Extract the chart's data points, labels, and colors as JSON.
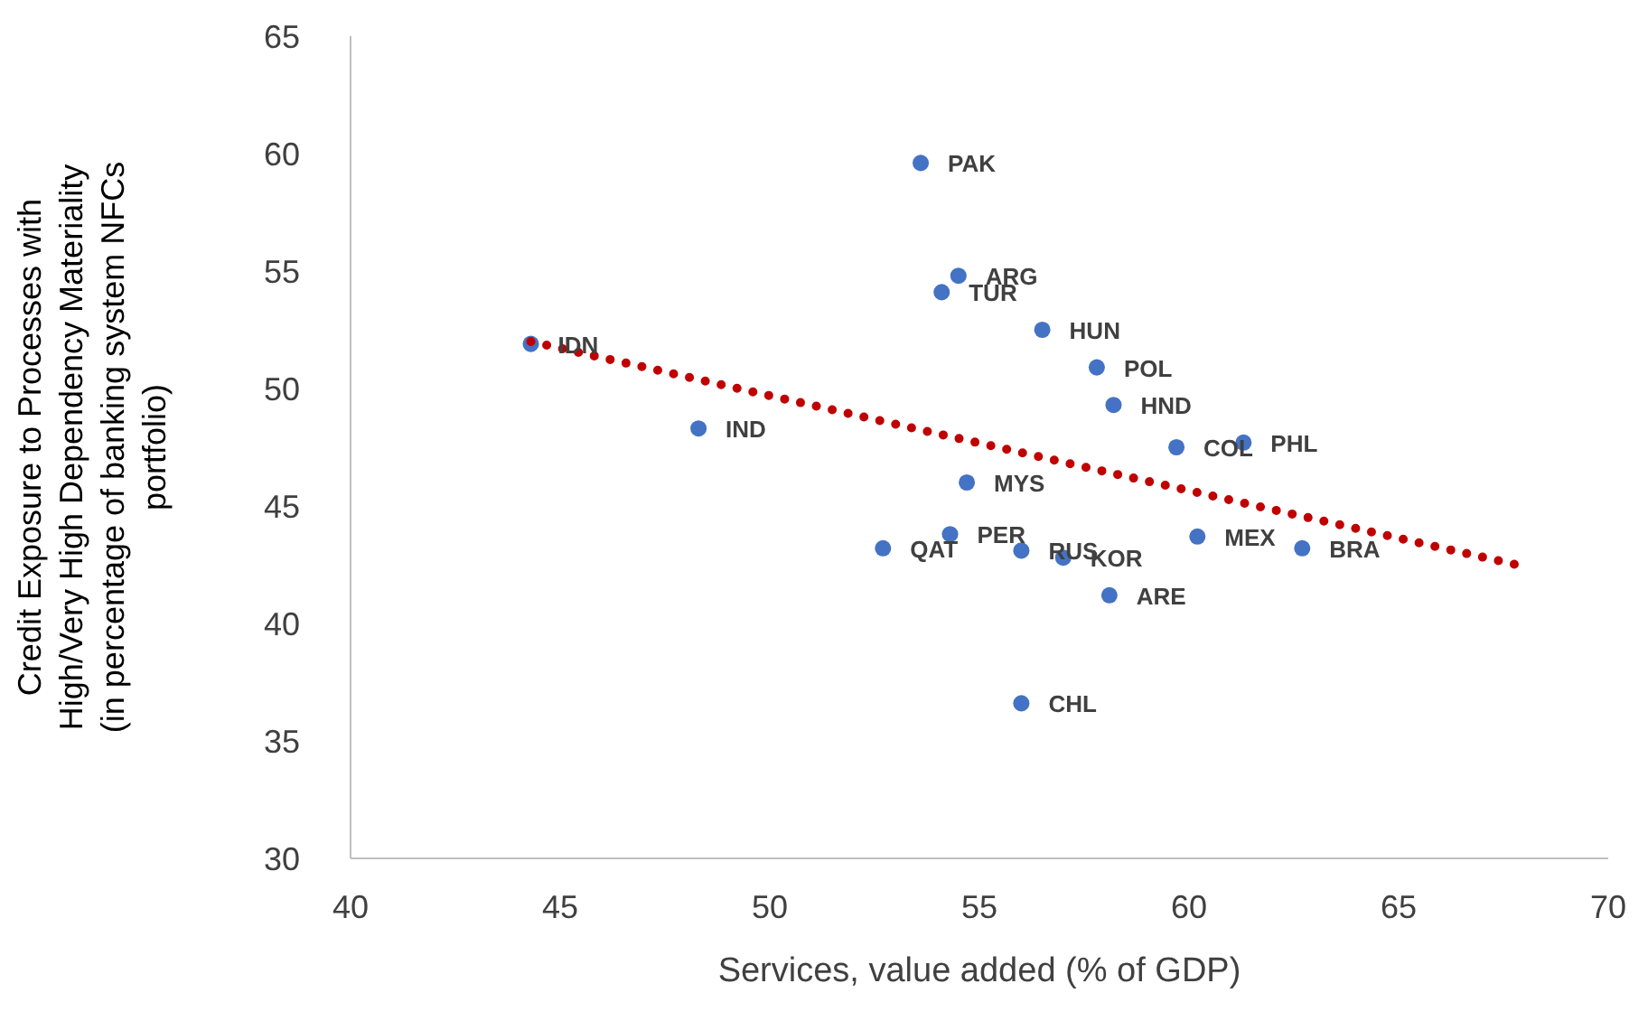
{
  "chart_data": {
    "type": "scatter",
    "xlabel": "Services, value added (% of GDP)",
    "ylabel": "Credit Exposure to Processes with\nHigh/Very High Dependency Materiality\n(in percentage of banking system NFCs\nportfolio)",
    "xlim": [
      40,
      70
    ],
    "xticks": [
      40,
      45,
      50,
      55,
      60,
      65,
      70
    ],
    "ylim": [
      30,
      65
    ],
    "yticks": [
      30,
      35,
      40,
      45,
      50,
      55,
      60,
      65
    ],
    "marker": "circle",
    "series": [
      {
        "color": "#4472c4",
        "x": [
          53.6,
          54.5,
          54.1,
          44.3,
          48.3,
          54.7,
          54.3,
          52.7,
          56.0,
          57.0,
          56.5,
          57.8,
          58.2,
          59.7,
          61.3,
          60.2,
          62.7,
          58.1,
          56.0
        ],
        "values": [
          59.6,
          54.8,
          54.1,
          51.9,
          48.3,
          46.0,
          43.8,
          43.2,
          43.1,
          42.8,
          52.5,
          50.9,
          49.3,
          47.5,
          47.7,
          43.7,
          43.2,
          41.2,
          36.6
        ],
        "value_labels": [
          "PAK",
          "ARG",
          "TUR",
          "IDN",
          "IND",
          "MYS",
          "PER",
          "QAT",
          "RUS",
          "KOR",
          "HUN",
          "POL",
          "HND",
          "COL",
          "PHL",
          "MEX",
          "BRA",
          "ARE",
          "CHL"
        ]
      },
      {
        "type": "line",
        "color": "#c00000",
        "line_style": "dotted",
        "marker": "none",
        "x": [
          44.3,
          67.8
        ],
        "values": [
          52.0,
          42.5
        ]
      }
    ]
  }
}
